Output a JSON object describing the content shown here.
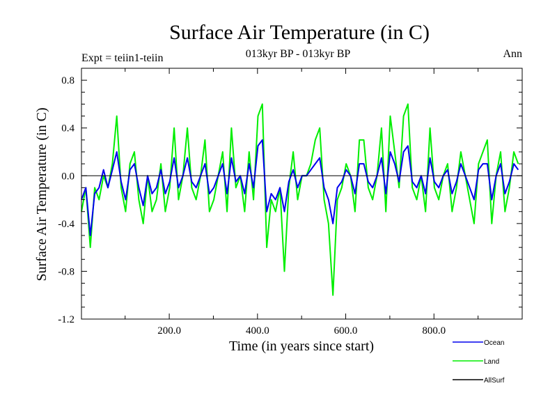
{
  "chart_data": {
    "type": "line",
    "title": "Surface Air Temperature (in C)",
    "subtitle": "013kyr BP - 013kyr BP",
    "left_label": "Expt = teiin1-teiin",
    "right_label": "Ann",
    "xlabel": "Time (in years since start)",
    "ylabel": "Surface Air Temperature (in C)",
    "xlim": [
      1,
      1000
    ],
    "ylim": [
      -1.2,
      0.9
    ],
    "x_ticks": [
      200,
      400,
      600,
      800
    ],
    "x_tick_labels": [
      "200.0",
      "400.0",
      "600.0",
      "800.0"
    ],
    "y_ticks": [
      -1.2,
      -0.8,
      -0.4,
      0.0,
      0.4,
      0.8
    ],
    "y_tick_labels": [
      "-1.2",
      "-0.8",
      "-0.4",
      "0.0",
      "0.4",
      "0.8"
    ],
    "zero_line": true,
    "grid": false,
    "legend_position": "bottom-right",
    "x_start": 1,
    "x_step": 10,
    "series": [
      {
        "name": "Land",
        "color": "#00ee00",
        "values": [
          -0.3,
          -0.1,
          -0.6,
          -0.1,
          -0.2,
          0.0,
          -0.1,
          0.1,
          0.5,
          -0.1,
          -0.3,
          0.1,
          0.2,
          -0.2,
          -0.4,
          0.0,
          -0.3,
          -0.2,
          0.1,
          -0.3,
          -0.1,
          0.4,
          -0.2,
          0.0,
          0.4,
          -0.1,
          -0.2,
          0.0,
          0.3,
          -0.3,
          -0.2,
          0.0,
          0.2,
          -0.3,
          0.4,
          -0.1,
          0.0,
          -0.3,
          0.2,
          -0.2,
          0.5,
          0.6,
          -0.6,
          -0.2,
          -0.3,
          -0.1,
          -0.8,
          -0.1,
          0.2,
          -0.2,
          0.0,
          0.0,
          0.1,
          0.3,
          0.4,
          -0.2,
          -0.4,
          -1.0,
          -0.2,
          -0.1,
          0.1,
          0.0,
          -0.3,
          0.3,
          0.3,
          -0.1,
          -0.2,
          0.0,
          0.4,
          -0.3,
          0.5,
          0.2,
          -0.1,
          0.5,
          0.6,
          -0.1,
          -0.2,
          0.0,
          -0.3,
          0.4,
          -0.1,
          -0.2,
          0.0,
          0.1,
          -0.3,
          -0.1,
          0.2,
          0.0,
          -0.2,
          -0.4,
          0.1,
          0.2,
          0.3,
          -0.4,
          0.0,
          0.2,
          -0.3,
          -0.1,
          0.2,
          0.1
        ]
      },
      {
        "name": "Ocean",
        "color": "#0000ee",
        "values": [
          -0.2,
          -0.1,
          -0.5,
          -0.15,
          -0.1,
          0.05,
          -0.1,
          0.05,
          0.2,
          -0.05,
          -0.2,
          0.05,
          0.1,
          -0.1,
          -0.25,
          0.0,
          -0.15,
          -0.1,
          0.05,
          -0.15,
          -0.05,
          0.15,
          -0.1,
          0.0,
          0.15,
          -0.05,
          -0.1,
          0.0,
          0.1,
          -0.15,
          -0.1,
          0.0,
          0.1,
          -0.15,
          0.15,
          -0.05,
          0.0,
          -0.15,
          0.1,
          -0.1,
          0.25,
          0.3,
          -0.3,
          -0.15,
          -0.2,
          -0.1,
          -0.3,
          -0.05,
          0.05,
          -0.1,
          0.0,
          0.0,
          0.05,
          0.1,
          0.15,
          -0.1,
          -0.2,
          -0.4,
          -0.1,
          -0.05,
          0.05,
          0.0,
          -0.15,
          0.1,
          0.1,
          -0.05,
          -0.1,
          0.0,
          0.15,
          -0.15,
          0.2,
          0.1,
          -0.05,
          0.2,
          0.25,
          -0.05,
          -0.1,
          0.0,
          -0.15,
          0.15,
          -0.05,
          -0.1,
          0.0,
          0.05,
          -0.15,
          -0.05,
          0.1,
          0.0,
          -0.1,
          -0.2,
          0.05,
          0.1,
          0.1,
          -0.2,
          0.0,
          0.1,
          -0.15,
          -0.05,
          0.1,
          0.05
        ]
      },
      {
        "name": "AllSurf",
        "color": "#000000",
        "values": []
      }
    ],
    "legend": [
      {
        "label": "Ocean",
        "color": "#0000ee"
      },
      {
        "label": "Land",
        "color": "#00ee00"
      },
      {
        "label": "AllSurf",
        "color": "#000000"
      }
    ]
  }
}
